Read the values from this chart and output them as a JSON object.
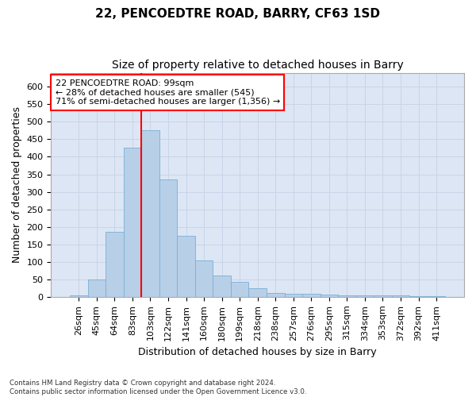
{
  "title": "22, PENCOEDTRE ROAD, BARRY, CF63 1SD",
  "subtitle": "Size of property relative to detached houses in Barry",
  "xlabel": "Distribution of detached houses by size in Barry",
  "ylabel": "Number of detached properties",
  "categories": [
    "26sqm",
    "45sqm",
    "64sqm",
    "83sqm",
    "103sqm",
    "122sqm",
    "141sqm",
    "160sqm",
    "180sqm",
    "199sqm",
    "218sqm",
    "238sqm",
    "257sqm",
    "276sqm",
    "295sqm",
    "315sqm",
    "334sqm",
    "353sqm",
    "372sqm",
    "392sqm",
    "411sqm"
  ],
  "values": [
    5,
    50,
    185,
    425,
    475,
    335,
    175,
    105,
    60,
    44,
    24,
    11,
    10,
    8,
    6,
    5,
    4,
    4,
    5,
    3,
    3
  ],
  "bar_color": "#b8cfe8",
  "bar_edge_color": "#7aafd4",
  "bar_alpha": 1.0,
  "grid_color": "#c8d4e8",
  "bg_color": "#dce6f5",
  "red_line_x": 3.5,
  "annotation_text": "22 PENCOEDTRE ROAD: 99sqm\n← 28% of detached houses are smaller (545)\n71% of semi-detached houses are larger (1,356) →",
  "annotation_box_color": "#ff0000",
  "ylim": [
    0,
    640
  ],
  "yticks": [
    0,
    50,
    100,
    150,
    200,
    250,
    300,
    350,
    400,
    450,
    500,
    550,
    600
  ],
  "footer_line1": "Contains HM Land Registry data © Crown copyright and database right 2024.",
  "footer_line2": "Contains public sector information licensed under the Open Government Licence v3.0.",
  "title_fontsize": 11,
  "subtitle_fontsize": 10,
  "label_fontsize": 9,
  "tick_fontsize": 8,
  "annotation_fontsize": 8
}
